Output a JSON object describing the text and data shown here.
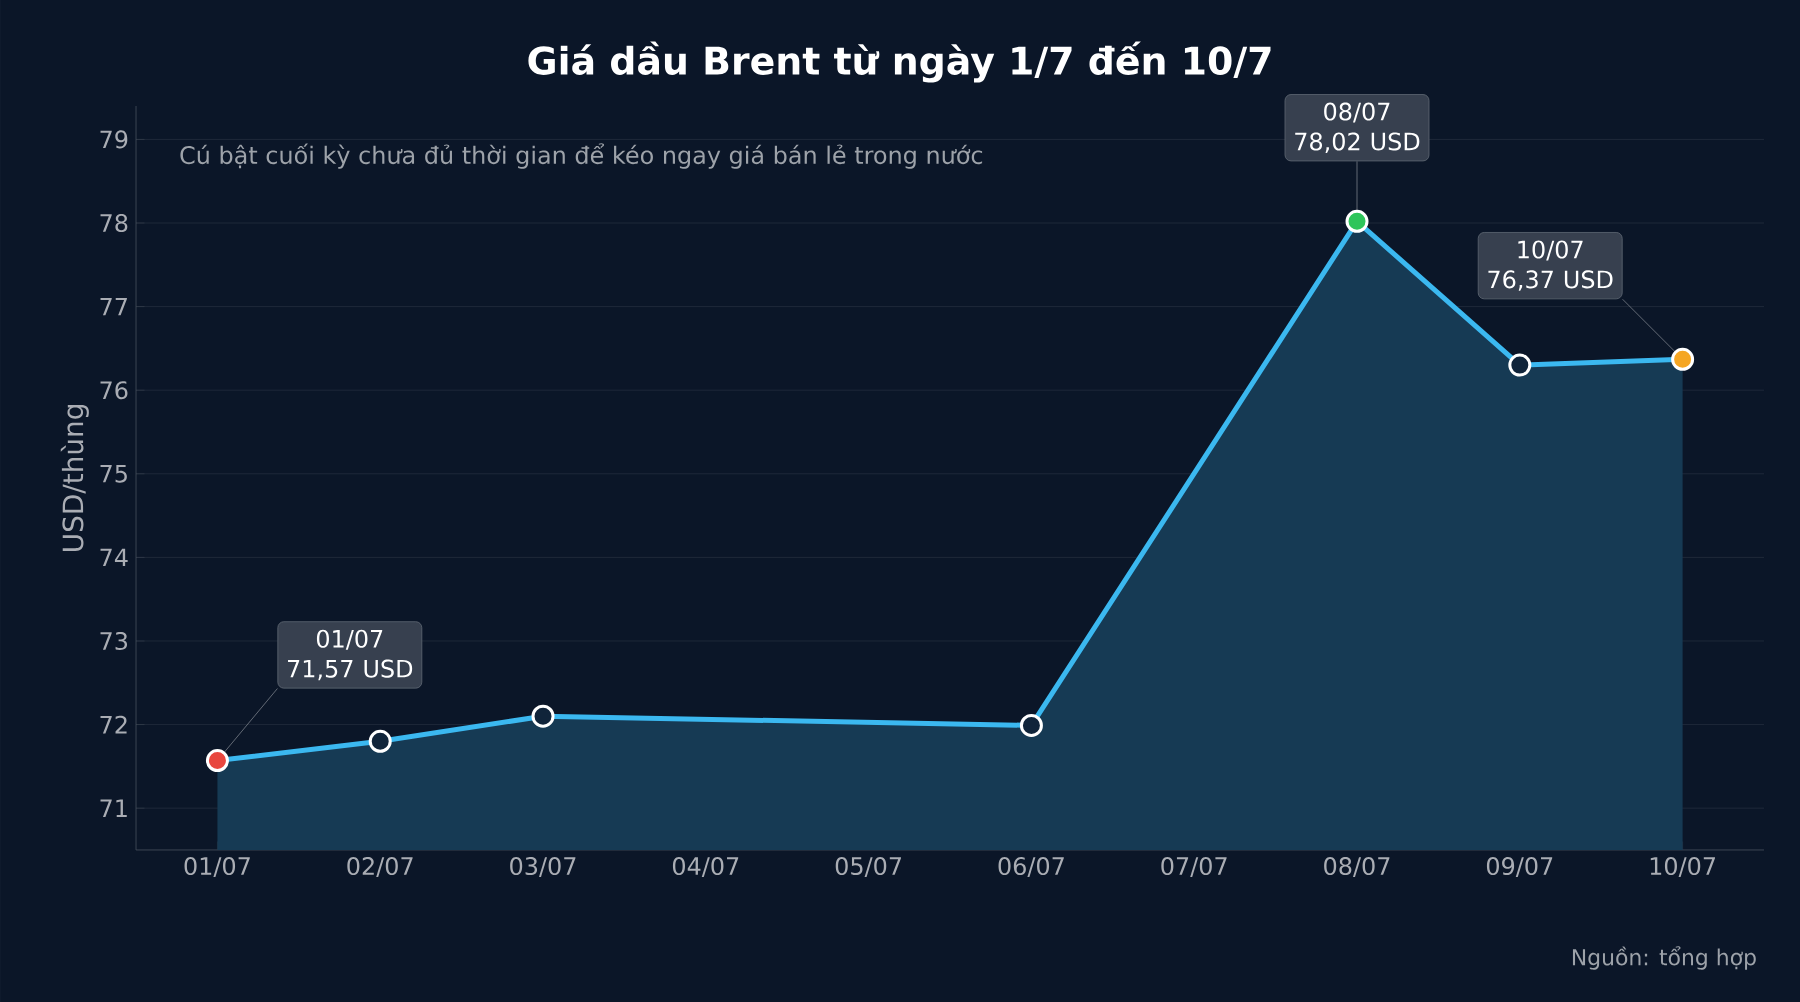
{
  "chart_data": {
    "type": "area",
    "title": "Giá dầu Brent từ ngày 1/7 đến 10/7",
    "ylabel": "USD/thùng",
    "categories": [
      "01/07",
      "02/07",
      "03/07",
      "04/07",
      "05/07",
      "06/07",
      "07/07",
      "08/07",
      "09/07",
      "10/07"
    ],
    "series": [
      {
        "color": "#3bb8f0",
        "values": [
          71.57,
          71.8,
          72.1,
          null,
          null,
          71.99,
          null,
          78.02,
          76.3,
          76.37
        ],
        "colors": [
          "#e8473f",
          "#10243a",
          "#10243a",
          null,
          null,
          "#10243a",
          null,
          "#2ec55a",
          "#10243a",
          "#f5a623"
        ]
      }
    ],
    "ylim": [
      70.5,
      79.4
    ],
    "yticks": [
      71,
      72,
      73,
      74,
      75,
      76,
      77,
      78,
      79
    ],
    "grid": "y",
    "marker": "circle",
    "annotations": [
      {
        "text": "01/07 71,57 USD",
        "x": "01/07",
        "y": 71.57
      },
      {
        "text": "08/07 78,02 USD",
        "x": "08/07",
        "y": 78.02
      },
      {
        "text": "10/07 76,37 USD",
        "x": "10/07",
        "y": 76.37
      },
      "Cú bật cuối kỳ chưa đủ thời gian để kéo ngay giá bán lẻ trong nước",
      "Nguồn: tổng hợp"
    ]
  }
}
